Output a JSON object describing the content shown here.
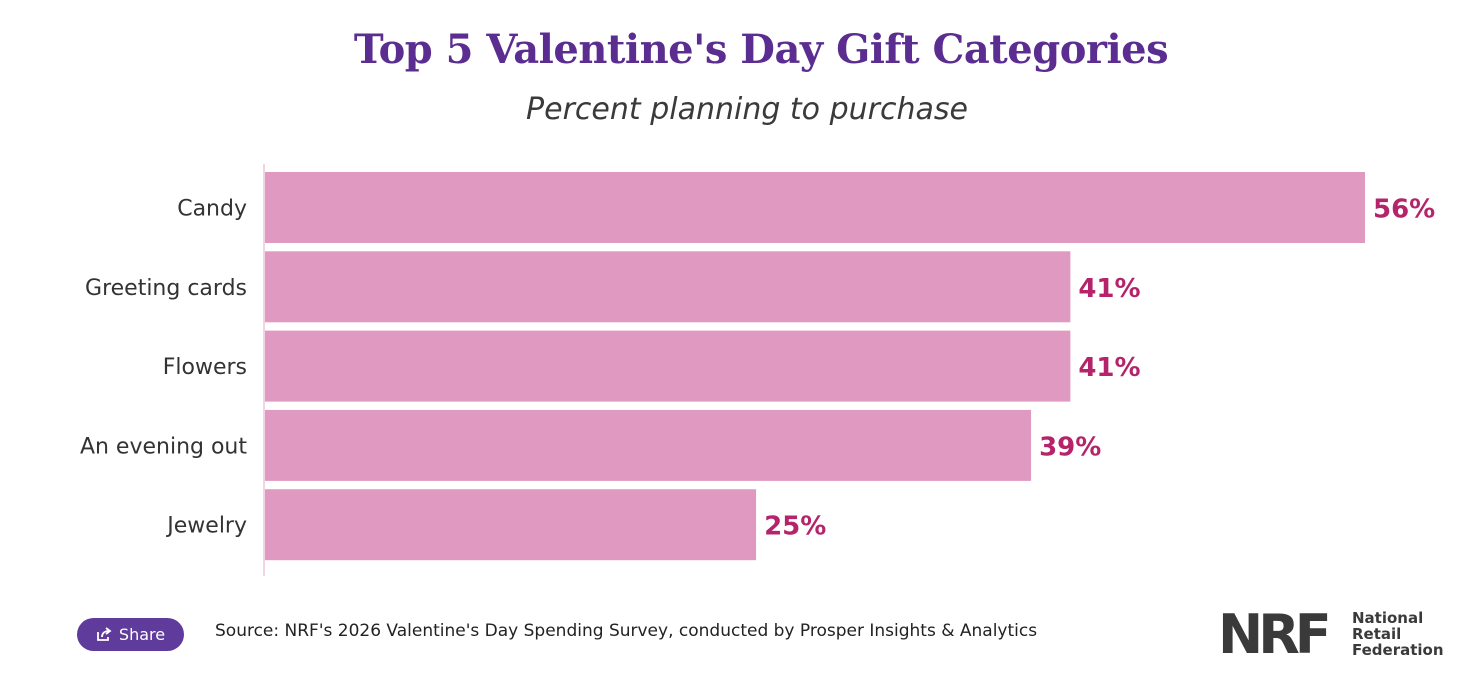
{
  "header": {
    "title": "Top 5 Valentine's Day Gift Categories",
    "subtitle": "Percent planning to purchase"
  },
  "chart_data": {
    "type": "bar",
    "orientation": "horizontal",
    "title": "Top 5 Valentine's Day Gift Categories",
    "subtitle": "Percent planning to purchase",
    "categories": [
      "Candy",
      "Greeting cards",
      "Flowers",
      "An evening out",
      "Jewelry"
    ],
    "values": [
      56,
      41,
      41,
      39,
      25
    ],
    "value_labels": [
      "56%",
      "41%",
      "41%",
      "39%",
      "25%"
    ],
    "xlabel": "",
    "ylabel": "",
    "xlim": [
      0,
      56
    ],
    "grid": false,
    "bar_color": "#e09ac2",
    "label_color": "#b5246b",
    "axis_color": "#f2d3e3"
  },
  "footer": {
    "share_label": "Share",
    "source": "Source: NRF's 2026 Valentine's Day Spending Survey, conducted by Prosper Insights & Analytics"
  },
  "logo": {
    "mark": "NRF",
    "line1": "National",
    "line2": "Retail",
    "line3": "Federation"
  },
  "icons": {
    "share": "share-icon"
  },
  "colors": {
    "title": "#5b2d91",
    "share_button": "#5f3b9c"
  }
}
